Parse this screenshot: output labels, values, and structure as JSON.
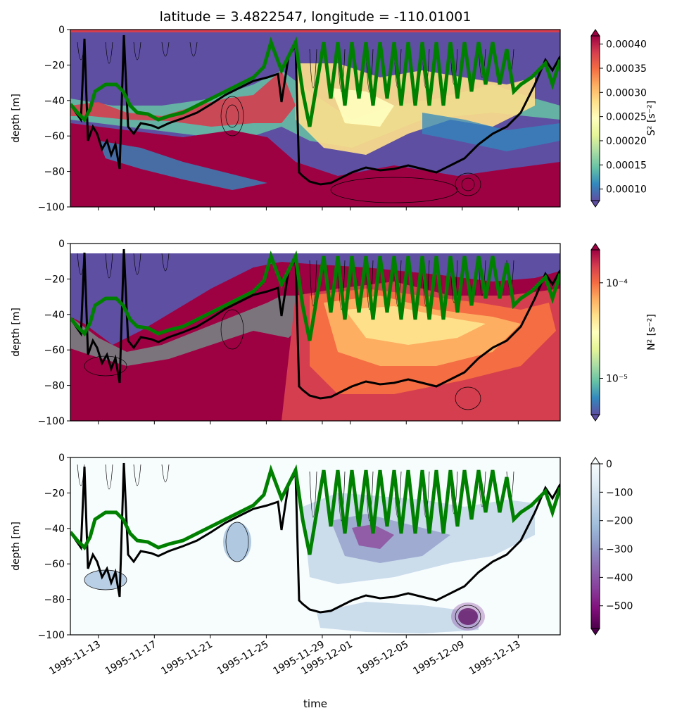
{
  "figure": {
    "title": "latitude = 3.4822547, longitude = -110.01001",
    "xlabel": "time",
    "x_ticklabels": [
      "1995-11-13",
      "1995-11-17",
      "1995-11-21",
      "1995-11-25",
      "1995-11-29",
      "1995-12-01",
      "1995-12-05",
      "1995-12-09",
      "1995-12-13"
    ]
  },
  "chart_data": [
    {
      "type": "heatmap",
      "panel": "top",
      "title": "latitude = 3.4822547, longitude = -110.01001",
      "xlabel": "",
      "ylabel": "depth [m]",
      "ylim": [
        -100,
        0
      ],
      "y_ticks": [
        0,
        -20,
        -40,
        -60,
        -80,
        -100
      ],
      "y_ticklabels": [
        "0",
        "−20",
        "−40",
        "−60",
        "−80",
        "−100"
      ],
      "xlim": [
        "1995-11-11",
        "1995-12-16"
      ],
      "colorbar": {
        "label": "S² [s⁻²]",
        "scale": "linear",
        "ticks": [
          "0.00010",
          "0.00015",
          "0.00020",
          "0.00025",
          "0.00030",
          "0.00035",
          "0.00040"
        ],
        "colormap": "Spectral_r",
        "extend": "both"
      },
      "overlays": [
        {
          "color": "#008000",
          "kind": "line"
        },
        {
          "color": "#000000",
          "kind": "line"
        },
        {
          "color": "#000000",
          "kind": "contours"
        }
      ]
    },
    {
      "type": "heatmap",
      "panel": "middle",
      "xlabel": "",
      "ylabel": "depth [m]",
      "ylim": [
        -100,
        0
      ],
      "y_ticks": [
        0,
        -20,
        -40,
        -60,
        -80,
        -100
      ],
      "y_ticklabels": [
        "0",
        "−20",
        "−40",
        "−60",
        "−80",
        "−100"
      ],
      "colorbar": {
        "label": "N² [s⁻²]",
        "scale": "log",
        "ticks": [
          "10⁻⁴",
          "10⁻⁵"
        ],
        "colormap": "Spectral_r",
        "extend": "both"
      },
      "overlays": [
        {
          "color": "#008000",
          "kind": "line"
        },
        {
          "color": "#000000",
          "kind": "line"
        },
        {
          "color": "#000000",
          "kind": "contours"
        }
      ]
    },
    {
      "type": "heatmap",
      "panel": "bottom",
      "xlabel": "time",
      "ylabel": "depth [m]",
      "ylim": [
        -100,
        0
      ],
      "y_ticks": [
        0,
        -20,
        -40,
        -60,
        -80,
        -100
      ],
      "y_ticklabels": [
        "0",
        "−20",
        "−40",
        "−60",
        "−80",
        "−100"
      ],
      "colorbar": {
        "label": "",
        "scale": "linear",
        "ticks": [
          "0",
          "−100",
          "−200",
          "−300",
          "−400",
          "−500"
        ],
        "colormap": "BuPu_r",
        "extend": "both"
      },
      "overlays": [
        {
          "color": "#008000",
          "kind": "line"
        },
        {
          "color": "#000000",
          "kind": "line"
        },
        {
          "color": "#000000",
          "kind": "contours"
        }
      ]
    }
  ],
  "colors": {
    "green_line": "#008000",
    "black_line": "#000000",
    "spectral": [
      "#5e4fa2",
      "#3288bd",
      "#66c2a5",
      "#abdda4",
      "#e6f598",
      "#ffffbf",
      "#fee08b",
      "#fdae61",
      "#f46d43",
      "#d53e4f",
      "#9e0142"
    ],
    "bupu_r": [
      "#4d004b",
      "#810f7c",
      "#88419d",
      "#8c6bb1",
      "#8c96c6",
      "#9ebcda",
      "#bfd3e6",
      "#e0ecf4",
      "#f7fcfd"
    ]
  }
}
